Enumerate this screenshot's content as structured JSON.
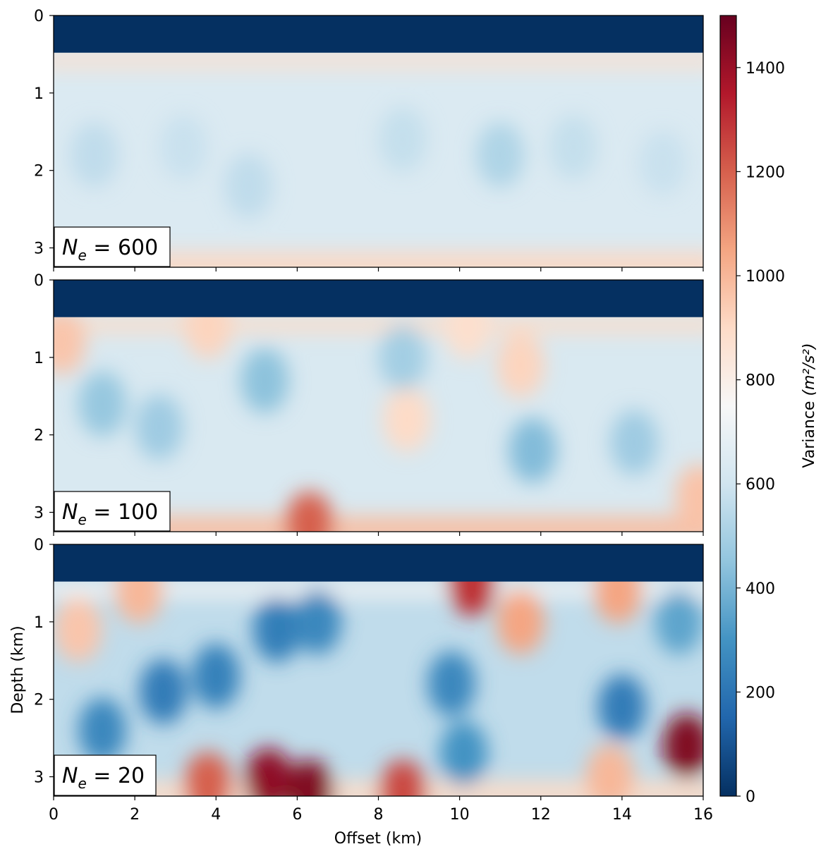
{
  "chart_data": {
    "type": "heatmap",
    "xlabel": "Offset (km)",
    "ylabel": "Depth (km)",
    "xlim": [
      0,
      16
    ],
    "ylim": [
      3.25,
      0
    ],
    "x_ticks": [
      "0",
      "2",
      "4",
      "6",
      "8",
      "10",
      "12",
      "14",
      "16"
    ],
    "y_ticks": [
      "0",
      "1",
      "2",
      "3"
    ],
    "water_layer_depth_km": 0.48,
    "panels": [
      {
        "label": "N_e = 600",
        "label_text": {
          "sym": "N",
          "sub": "e",
          "rest": " = 600"
        },
        "background_variance": 640,
        "shallow_band_variance": 880,
        "deep_band_variance": 910,
        "anomalies": [
          {
            "x": 1.0,
            "z": 1.8,
            "variance": 560
          },
          {
            "x": 3.2,
            "z": 1.7,
            "variance": 580
          },
          {
            "x": 4.8,
            "z": 2.2,
            "variance": 560
          },
          {
            "x": 8.6,
            "z": 1.6,
            "variance": 570
          },
          {
            "x": 11.0,
            "z": 1.8,
            "variance": 520
          },
          {
            "x": 12.8,
            "z": 1.7,
            "variance": 570
          },
          {
            "x": 15.0,
            "z": 1.9,
            "variance": 580
          }
        ]
      },
      {
        "label": "N_e = 100",
        "label_text": {
          "sym": "N",
          "sub": "e",
          "rest": " = 100"
        },
        "background_variance": 630,
        "shallow_band_variance": 900,
        "deep_band_variance": 990,
        "anomalies": [
          {
            "x": 0.2,
            "z": 0.8,
            "variance": 960
          },
          {
            "x": 1.2,
            "z": 1.6,
            "variance": 460
          },
          {
            "x": 2.6,
            "z": 1.9,
            "variance": 480
          },
          {
            "x": 3.8,
            "z": 0.6,
            "variance": 920
          },
          {
            "x": 5.2,
            "z": 1.3,
            "variance": 440
          },
          {
            "x": 8.7,
            "z": 1.8,
            "variance": 900
          },
          {
            "x": 8.6,
            "z": 1.0,
            "variance": 490
          },
          {
            "x": 10.2,
            "z": 0.6,
            "variance": 880
          },
          {
            "x": 11.5,
            "z": 1.1,
            "variance": 920
          },
          {
            "x": 11.8,
            "z": 2.2,
            "variance": 420
          },
          {
            "x": 14.3,
            "z": 2.1,
            "variance": 480
          },
          {
            "x": 15.9,
            "z": 2.8,
            "variance": 970
          },
          {
            "x": 6.3,
            "z": 3.15,
            "variance": 1200
          }
        ]
      },
      {
        "label": "N_e = 20",
        "label_text": {
          "sym": "N",
          "sub": "e",
          "rest": " = 20"
        },
        "background_variance": 560,
        "shallow_band_variance": 760,
        "deep_band_variance": 900,
        "anomalies": [
          {
            "x": 0.6,
            "z": 1.1,
            "variance": 960
          },
          {
            "x": 2.1,
            "z": 0.6,
            "variance": 1000
          },
          {
            "x": 2.7,
            "z": 1.9,
            "variance": 220
          },
          {
            "x": 4.0,
            "z": 1.7,
            "variance": 240
          },
          {
            "x": 5.5,
            "z": 1.1,
            "variance": 230
          },
          {
            "x": 6.5,
            "z": 1.0,
            "variance": 260
          },
          {
            "x": 1.2,
            "z": 2.4,
            "variance": 260
          },
          {
            "x": 10.3,
            "z": 0.5,
            "variance": 1300
          },
          {
            "x": 11.5,
            "z": 1.0,
            "variance": 1050
          },
          {
            "x": 9.8,
            "z": 1.8,
            "variance": 260
          },
          {
            "x": 10.1,
            "z": 2.7,
            "variance": 300
          },
          {
            "x": 13.9,
            "z": 0.6,
            "variance": 1050
          },
          {
            "x": 14.0,
            "z": 2.1,
            "variance": 220
          },
          {
            "x": 15.4,
            "z": 1.0,
            "variance": 350
          },
          {
            "x": 15.6,
            "z": 2.6,
            "variance": 1450
          },
          {
            "x": 5.3,
            "z": 3.05,
            "variance": 1420
          },
          {
            "x": 6.3,
            "z": 3.2,
            "variance": 1450
          },
          {
            "x": 3.8,
            "z": 3.1,
            "variance": 1200
          },
          {
            "x": 8.6,
            "z": 3.2,
            "variance": 1250
          },
          {
            "x": 13.7,
            "z": 3.0,
            "variance": 1000
          }
        ]
      }
    ],
    "colorbar": {
      "label": "Variance",
      "unit": "(m²/s²)",
      "colormap": "RdBu_r",
      "range": [
        0,
        1500
      ],
      "ticks": [
        "0",
        "200",
        "400",
        "600",
        "800",
        "1000",
        "1200",
        "1400"
      ],
      "stops": [
        "#053061",
        "#2166ac",
        "#4393c3",
        "#92c5de",
        "#d1e5f0",
        "#f7f7f7",
        "#fddbc7",
        "#f4a582",
        "#d6604d",
        "#b2182b",
        "#67001f"
      ]
    }
  }
}
